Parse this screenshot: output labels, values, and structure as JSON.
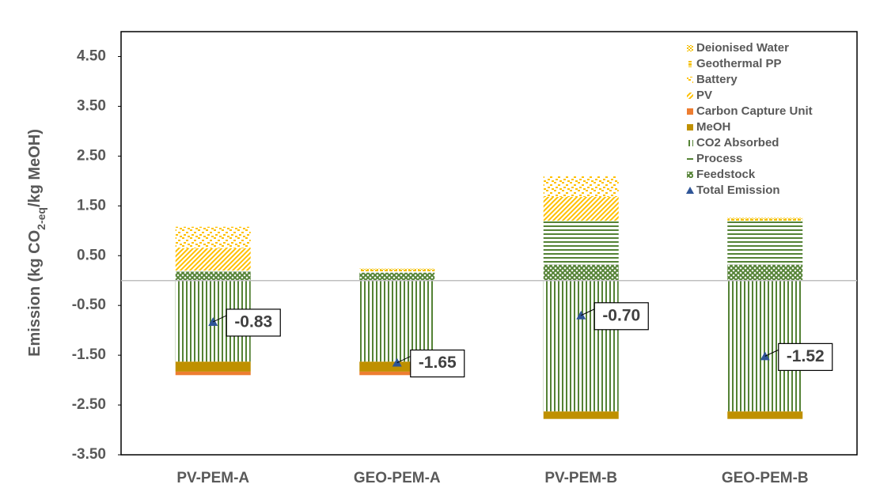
{
  "chart_data": {
    "type": "stacked_bar",
    "y_label_parts": [
      "Emission (kg CO",
      "2-eq",
      "/kg MeOH)"
    ],
    "categories": [
      "PV-PEM-A",
      "GEO-PEM-A",
      "PV-PEM-B",
      "GEO-PEM-B"
    ],
    "series": [
      {
        "name": "Deionised Water",
        "color": "#f5c000",
        "pattern": "checker",
        "values": [
          0,
          0.02,
          0,
          0.02
        ]
      },
      {
        "name": "Geothermal PP",
        "color": "#f5c000",
        "pattern": "dash",
        "values": [
          0,
          0.04,
          0,
          0.04
        ]
      },
      {
        "name": "Battery",
        "color": "#ffc000",
        "pattern": "dots",
        "values": [
          0.43,
          0,
          0.42,
          0
        ]
      },
      {
        "name": "PV",
        "color": "#ffc000",
        "pattern": "hatch",
        "values": [
          0.45,
          0,
          0.48,
          0
        ]
      },
      {
        "name": "Carbon Capture Unit",
        "color": "#ed7d31",
        "pattern": "solid",
        "values": [
          -0.07,
          -0.07,
          0,
          0
        ]
      },
      {
        "name": "MeOH",
        "color": "#bf9000",
        "pattern": "solid",
        "values": [
          -0.2,
          -0.2,
          -0.15,
          -0.15
        ]
      },
      {
        "name": "CO2 Absorbed",
        "color": "#548235",
        "pattern": "vertical",
        "values": [
          -1.63,
          -1.63,
          -2.63,
          -2.63
        ]
      },
      {
        "name": "Process",
        "color": "#548235",
        "pattern": "horizontal",
        "values": [
          0.02,
          0.02,
          0.88,
          0.88
        ]
      },
      {
        "name": "Feedstock",
        "color": "#548235",
        "pattern": "cross",
        "values": [
          0.18,
          0.16,
          0.32,
          0.32
        ]
      }
    ],
    "total": {
      "name": "Total Emission",
      "color": "#2f5597",
      "values": [
        -0.83,
        -1.65,
        -0.7,
        -1.52
      ],
      "value_labels": [
        "-0.83",
        "-1.65",
        "-0.70",
        "-1.52"
      ]
    },
    "ylim": [
      -3.5,
      5.0
    ],
    "yticks": [
      {
        "value": -3.5,
        "label": "-3.50"
      },
      {
        "value": -2.5,
        "label": "-2.50"
      },
      {
        "value": -1.5,
        "label": "-1.50"
      },
      {
        "value": -0.5,
        "label": "-0.50"
      },
      {
        "value": 0.5,
        "label": "0.50"
      },
      {
        "value": 1.5,
        "label": "1.50"
      },
      {
        "value": 2.5,
        "label": "2.50"
      },
      {
        "value": 3.5,
        "label": "3.50"
      },
      {
        "value": 4.5,
        "label": "4.50"
      }
    ],
    "legend": "top-right",
    "grid": false
  }
}
